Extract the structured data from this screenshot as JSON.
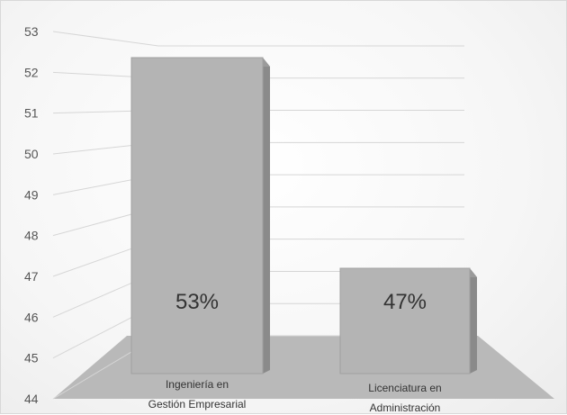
{
  "chart_data": {
    "type": "bar",
    "categories": [
      [
        "Ingeniería en",
        "Gestión Empresarial"
      ],
      [
        "Licenciatura en",
        "Administración"
      ]
    ],
    "values": [
      53,
      47
    ],
    "data_labels": [
      "53%",
      "47%"
    ],
    "yticks": [
      44,
      45,
      46,
      47,
      48,
      49,
      50,
      51,
      52,
      53
    ],
    "ylim": [
      44,
      53
    ],
    "grid": true,
    "legend": "none",
    "colors": {
      "bar_front": "#b4b4b4",
      "bar_top": "#9a9a9a",
      "bar_side": "#8a8a8a",
      "floor": "#b9b9b9",
      "grid": "#d6d6d6"
    }
  }
}
